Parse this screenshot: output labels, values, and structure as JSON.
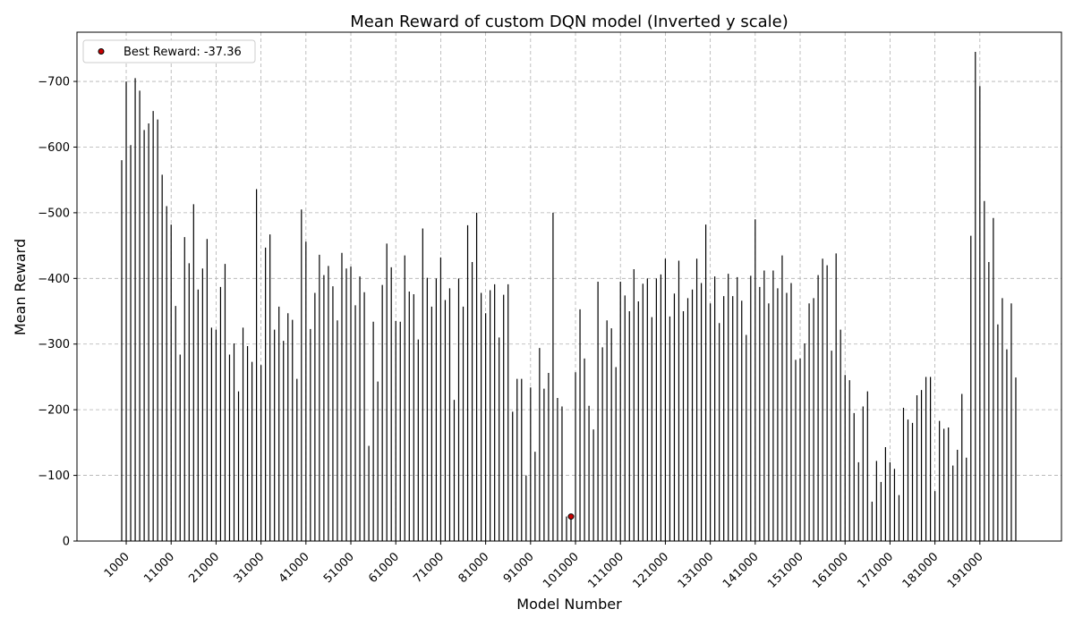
{
  "chart_data": {
    "type": "bar",
    "title": "Mean Reward of custom DQN model (Inverted y scale)",
    "xlabel": "Model Number",
    "ylabel": "Mean Reward",
    "y_inverted": true,
    "ylim": [
      0,
      -775
    ],
    "yticks": [
      0,
      -100,
      -200,
      -300,
      -400,
      -500,
      -600,
      -700
    ],
    "ytick_labels": [
      "0",
      "−100",
      "−200",
      "−300",
      "−400",
      "−500",
      "−600",
      "−700"
    ],
    "xtick_labels": [
      "1000",
      "11000",
      "21000",
      "31000",
      "41000",
      "51000",
      "61000",
      "71000",
      "81000",
      "91000",
      "101000",
      "111000",
      "121000",
      "131000",
      "141000",
      "151000",
      "161000",
      "171000",
      "181000",
      "191000"
    ],
    "grid": true,
    "legend_position": "top-left",
    "legend_label": "Best Reward: -37.36",
    "best_model": 100000,
    "best_reward": -37.36,
    "bar_color": "#000000",
    "best_point_color": "#cc0000",
    "x": [
      0,
      1000,
      2000,
      3000,
      4000,
      5000,
      6000,
      7000,
      8000,
      9000,
      10000,
      11000,
      12000,
      13000,
      14000,
      15000,
      16000,
      17000,
      18000,
      19000,
      20000,
      21000,
      22000,
      23000,
      24000,
      25000,
      26000,
      27000,
      28000,
      29000,
      30000,
      31000,
      32000,
      33000,
      34000,
      35000,
      36000,
      37000,
      38000,
      39000,
      40000,
      41000,
      42000,
      43000,
      44000,
      45000,
      46000,
      47000,
      48000,
      49000,
      50000,
      51000,
      52000,
      53000,
      54000,
      55000,
      56000,
      57000,
      58000,
      59000,
      60000,
      61000,
      62000,
      63000,
      64000,
      65000,
      66000,
      67000,
      68000,
      69000,
      70000,
      71000,
      72000,
      73000,
      74000,
      75000,
      76000,
      77000,
      78000,
      79000,
      80000,
      81000,
      82000,
      83000,
      84000,
      85000,
      86000,
      87000,
      88000,
      89000,
      90000,
      91000,
      92000,
      93000,
      94000,
      95000,
      96000,
      97000,
      98000,
      99000,
      100000,
      101000,
      102000,
      103000,
      104000,
      105000,
      106000,
      107000,
      108000,
      109000,
      110000,
      111000,
      112000,
      113000,
      114000,
      115000,
      116000,
      117000,
      118000,
      119000,
      120000,
      121000,
      122000,
      123000,
      124000,
      125000,
      126000,
      127000,
      128000,
      129000,
      130000,
      131000,
      132000,
      133000,
      134000,
      135000,
      136000,
      137000,
      138000,
      139000,
      140000,
      141000,
      142000,
      143000,
      144000,
      145000,
      146000,
      147000,
      148000,
      149000,
      150000,
      151000,
      152000,
      153000,
      154000,
      155000,
      156000,
      157000,
      158000,
      159000,
      160000,
      161000,
      162000,
      163000,
      164000,
      165000,
      166000,
      167000,
      168000,
      169000,
      170000,
      171000,
      172000,
      173000,
      174000,
      175000,
      176000,
      177000,
      178000,
      179000,
      180000,
      181000,
      182000,
      183000,
      184000,
      185000,
      186000,
      187000,
      188000,
      189000,
      190000,
      191000,
      192000,
      193000,
      194000,
      195000,
      196000,
      197000,
      198000,
      199000
    ],
    "values": [
      -580,
      -700,
      -603,
      -705,
      -686,
      -626,
      -636,
      -655,
      -642,
      -558,
      -510,
      -482,
      -358,
      -284,
      -463,
      -423,
      -513,
      -383,
      -415,
      -460,
      -325,
      -322,
      -387,
      -422,
      -284,
      -301,
      -228,
      -325,
      -297,
      -273,
      -536,
      -268,
      -447,
      -467,
      -322,
      -357,
      -305,
      -347,
      -337,
      -247,
      -505,
      -456,
      -323,
      -378,
      -436,
      -405,
      -419,
      -388,
      -336,
      -439,
      -415,
      -418,
      -359,
      -403,
      -379,
      -145,
      -334,
      -243,
      -390,
      -453,
      -417,
      -335,
      -334,
      -435,
      -380,
      -376,
      -307,
      -476,
      -401,
      -357,
      -400,
      -432,
      -367,
      -385,
      -215,
      -400,
      -357,
      -481,
      -425,
      -500,
      -378,
      -347,
      -382,
      -391,
      -310,
      -375,
      -391,
      -197,
      -247,
      -247,
      -100,
      -234,
      -136,
      -294,
      -232,
      -256,
      -500,
      -218,
      -205,
      -37.36,
      -37.36,
      -257,
      -353,
      -278,
      -206,
      -170,
      -395,
      -295,
      -336,
      -324,
      -265,
      -395,
      -374,
      -350,
      -414,
      -365,
      -392,
      -400,
      -341,
      -400,
      -406,
      -430,
      -342,
      -377,
      -427,
      -350,
      -370,
      -383,
      -430,
      -393,
      -482,
      -362,
      -403,
      -332,
      -373,
      -407,
      -373,
      -402,
      -366,
      -314,
      -404,
      -490,
      -387,
      -412,
      -362,
      -412,
      -385,
      -435,
      -378,
      -393,
      -276,
      -278,
      -301,
      -362,
      -370,
      -405,
      -430,
      -420,
      -290,
      -438,
      -322,
      -253,
      -245,
      -195,
      -120,
      -205,
      -228,
      -60,
      -122,
      -90,
      -143,
      -120,
      -110,
      -70,
      -203,
      -185,
      -180,
      -222,
      -230,
      -250,
      -250,
      -76,
      -183,
      -171,
      -173,
      -115,
      -139,
      -224,
      -127,
      -465,
      -745,
      -693,
      -518,
      -425,
      -492,
      -330,
      -370,
      -292,
      -362,
      -249
    ]
  }
}
